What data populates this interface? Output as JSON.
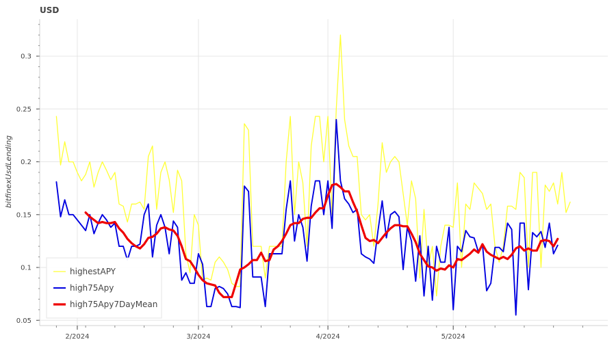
{
  "chart_data": {
    "type": "line",
    "title": "USD",
    "xlabel": "",
    "ylabel": "bitfinexUsdLending",
    "ylim": [
      0.045,
      0.335
    ],
    "xlim": [
      "2024-01-23",
      "2024-06-07"
    ],
    "grid": true,
    "legend_position": "bottom-left",
    "y_ticks": [
      "0.05",
      "0.1",
      "0.15",
      "0.2",
      "0.25",
      "0.3"
    ],
    "y_tick_values": [
      0.05,
      0.1,
      0.15,
      0.2,
      0.25,
      0.3
    ],
    "x_ticks": [
      "2/2024",
      "3/2024",
      "4/2024",
      "5/2024"
    ],
    "x_tick_dates": [
      "2024-02-01",
      "2024-03-01",
      "2024-04-01",
      "2024-05-01"
    ],
    "x_start": "2024-01-27",
    "series": [
      {
        "name": "highestAPY",
        "color": "#ffff33",
        "values": [
          0.243,
          0.197,
          0.219,
          0.2,
          0.2,
          0.19,
          0.182,
          0.188,
          0.2,
          0.176,
          0.19,
          0.2,
          0.192,
          0.183,
          0.19,
          0.16,
          0.158,
          0.143,
          0.16,
          0.16,
          0.162,
          0.155,
          0.205,
          0.215,
          0.155,
          0.19,
          0.2,
          0.183,
          0.152,
          0.192,
          0.182,
          0.113,
          0.095,
          0.15,
          0.14,
          0.088,
          0.09,
          0.088,
          0.105,
          0.11,
          0.105,
          0.098,
          0.085,
          0.082,
          0.082,
          0.236,
          0.23,
          0.12,
          0.12,
          0.12,
          0.09,
          0.12,
          0.12,
          0.12,
          0.12,
          0.2,
          0.243,
          0.15,
          0.2,
          0.18,
          0.12,
          0.215,
          0.243,
          0.243,
          0.2,
          0.243,
          0.15,
          0.25,
          0.32,
          0.24,
          0.215,
          0.205,
          0.205,
          0.15,
          0.145,
          0.15,
          0.12,
          0.16,
          0.218,
          0.19,
          0.2,
          0.205,
          0.2,
          0.17,
          0.14,
          0.182,
          0.165,
          0.09,
          0.155,
          0.1,
          0.12,
          0.073,
          0.12,
          0.14,
          0.14,
          0.138,
          0.18,
          0.1,
          0.16,
          0.155,
          0.18,
          0.175,
          0.17,
          0.155,
          0.16,
          0.12,
          0.105,
          0.12,
          0.158,
          0.158,
          0.155,
          0.19,
          0.185,
          0.1,
          0.19,
          0.19,
          0.1,
          0.178,
          0.172,
          0.18,
          0.16,
          0.19,
          0.152,
          0.162
        ]
      },
      {
        "name": "high75Apy",
        "color": "#0000e0",
        "values": [
          0.181,
          0.148,
          0.164,
          0.15,
          0.15,
          0.145,
          0.14,
          0.135,
          0.15,
          0.132,
          0.142,
          0.15,
          0.145,
          0.138,
          0.142,
          0.12,
          0.12,
          0.107,
          0.12,
          0.12,
          0.122,
          0.15,
          0.16,
          0.11,
          0.14,
          0.15,
          0.138,
          0.113,
          0.144,
          0.138,
          0.088,
          0.095,
          0.085,
          0.085,
          0.113,
          0.103,
          0.063,
          0.063,
          0.08,
          0.082,
          0.08,
          0.075,
          0.063,
          0.063,
          0.062,
          0.177,
          0.172,
          0.091,
          0.091,
          0.091,
          0.063,
          0.113,
          0.113,
          0.113,
          0.113,
          0.155,
          0.182,
          0.125,
          0.15,
          0.138,
          0.106,
          0.158,
          0.182,
          0.182,
          0.15,
          0.182,
          0.137,
          0.24,
          0.182,
          0.165,
          0.16,
          0.152,
          0.155,
          0.113,
          0.11,
          0.108,
          0.104,
          0.135,
          0.163,
          0.128,
          0.15,
          0.153,
          0.148,
          0.098,
          0.138,
          0.125,
          0.087,
          0.13,
          0.073,
          0.12,
          0.069,
          0.12,
          0.105,
          0.105,
          0.138,
          0.06,
          0.12,
          0.115,
          0.135,
          0.129,
          0.128,
          0.115,
          0.122,
          0.078,
          0.085,
          0.119,
          0.119,
          0.115,
          0.142,
          0.136,
          0.055,
          0.142,
          0.142,
          0.079,
          0.133,
          0.129,
          0.134,
          0.119,
          0.142,
          0.113,
          0.121
        ]
      },
      {
        "name": "high75Apy7DayMean",
        "color": "#ee0000",
        "values": [
          null,
          null,
          null,
          null,
          null,
          null,
          null,
          0.152,
          0.148,
          0.145,
          0.142,
          0.143,
          0.142,
          0.142,
          0.143,
          0.137,
          0.133,
          0.127,
          0.123,
          0.12,
          0.118,
          0.122,
          0.128,
          0.129,
          0.132,
          0.137,
          0.138,
          0.136,
          0.135,
          0.13,
          0.12,
          0.108,
          0.106,
          0.1,
          0.093,
          0.088,
          0.085,
          0.084,
          0.083,
          0.076,
          0.072,
          0.072,
          0.072,
          0.085,
          0.098,
          0.1,
          0.103,
          0.107,
          0.107,
          0.114,
          0.106,
          0.107,
          0.117,
          0.12,
          0.125,
          0.132,
          0.14,
          0.142,
          0.142,
          0.146,
          0.147,
          0.147,
          0.152,
          0.156,
          0.156,
          0.168,
          0.178,
          0.179,
          0.176,
          0.172,
          0.172,
          0.162,
          0.153,
          0.14,
          0.128,
          0.125,
          0.126,
          0.123,
          0.128,
          0.133,
          0.137,
          0.14,
          0.14,
          0.139,
          0.139,
          0.132,
          0.124,
          0.113,
          0.107,
          0.101,
          0.1,
          0.097,
          0.099,
          0.098,
          0.102,
          0.1,
          0.108,
          0.107,
          0.11,
          0.113,
          0.117,
          0.114,
          0.122,
          0.115,
          0.112,
          0.11,
          0.108,
          0.11,
          0.108,
          0.112,
          0.118,
          0.12,
          0.116,
          0.118,
          0.116,
          0.116,
          0.125,
          0.126,
          0.125,
          0.12,
          0.127
        ]
      }
    ]
  }
}
